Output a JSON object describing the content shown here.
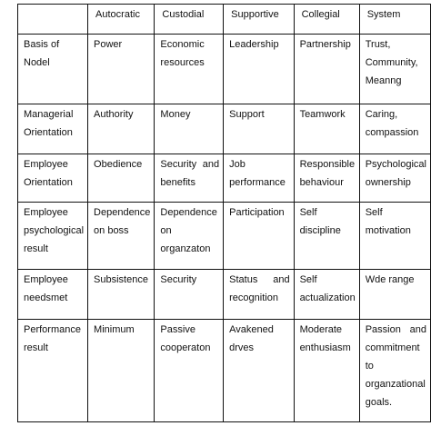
{
  "table": {
    "header": [
      "",
      "Autocratic",
      "Custodial",
      "Supportive",
      "Collegial",
      "System"
    ],
    "rows": [
      [
        "Basis of Nodel",
        "Power",
        "Economic resources",
        "Leadership",
        "Partnership",
        "Trust, Community, Meanng"
      ],
      [
        "Managerial Orientation",
        "Authority",
        "Money",
        "Support",
        "Teamwork",
        "Caring, compassion"
      ],
      [
        "Employee Orientation",
        "Obedience",
        "Security and benefits",
        "Job performance",
        "Responsible behaviour",
        "Psychological ownership"
      ],
      [
        "Employee psychological result",
        "Dependence on boss",
        "Dependence on organzaton",
        "Participation",
        "Self discipline",
        "Self motivation"
      ],
      [
        "Employee needsmet",
        "Subsistence",
        "Security",
        "Status and recognition",
        "Self actualization",
        "Wde range"
      ],
      [
        "Performance result",
        "Minimum",
        "Passive cooperaton",
        "Avakened drves",
        "Moderate enthusiasm",
        "Passion and commitment to organzational goals."
      ]
    ]
  }
}
